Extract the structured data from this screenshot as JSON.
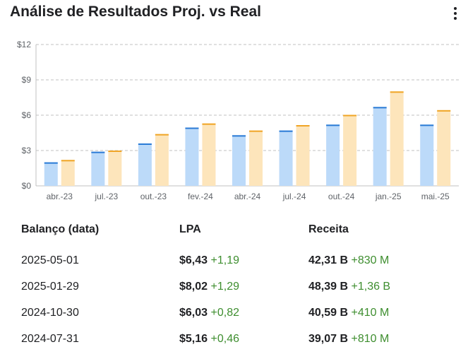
{
  "header": {
    "title": "Análise de Resultados Proj. vs Real"
  },
  "colors": {
    "actual_fill": "#bcdaf9",
    "actual_top": "#2b7bd6",
    "projected_fill": "#fde5bb",
    "projected_top": "#f0a526",
    "positive": "#3e8e2f",
    "grid": "#c0c0c0"
  },
  "chart_data": {
    "type": "bar",
    "categories": [
      "abr.-23",
      "jul.-23",
      "out.-23",
      "fev.-24",
      "abr.-24",
      "jul.-24",
      "out.-24",
      "jan.-25",
      "mai.-25"
    ],
    "series": [
      {
        "values": [
          2.0,
          2.9,
          3.6,
          4.95,
          4.3,
          4.7,
          5.2,
          6.7,
          5.2
        ]
      },
      {
        "values": [
          2.2,
          3.0,
          4.4,
          5.3,
          4.7,
          5.16,
          6.03,
          8.02,
          6.43
        ]
      }
    ],
    "yticks": [
      "$0",
      "$3",
      "$6",
      "$9",
      "$12"
    ],
    "ylim": [
      0,
      12
    ],
    "grid": true
  },
  "table": {
    "headers": [
      "Balanço (data)",
      "LPA",
      "Receita"
    ],
    "rows": [
      {
        "date": "2025-05-01",
        "eps": "$6,43",
        "eps_diff": "+1,19",
        "revenue": "42,31 B",
        "rev_diff": "+830 M"
      },
      {
        "date": "2025-01-29",
        "eps": "$8,02",
        "eps_diff": "+1,29",
        "revenue": "48,39 B",
        "rev_diff": "+1,36 B"
      },
      {
        "date": "2024-10-30",
        "eps": "$6,03",
        "eps_diff": "+0,82",
        "revenue": "40,59 B",
        "rev_diff": "+410 M"
      },
      {
        "date": "2024-07-31",
        "eps": "$5,16",
        "eps_diff": "+0,46",
        "revenue": "39,07 B",
        "rev_diff": "+810 M"
      }
    ]
  }
}
